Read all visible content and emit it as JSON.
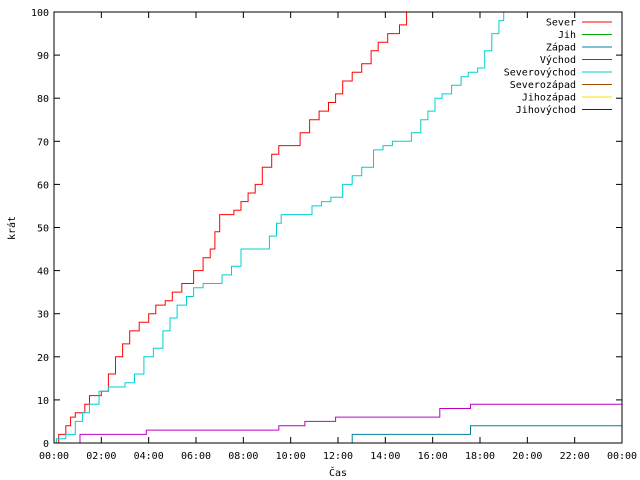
{
  "chart_data": {
    "type": "line",
    "title": "",
    "xlabel": "Čas",
    "ylabel": "krát",
    "xlim": [
      0,
      24
    ],
    "ylim": [
      0,
      100
    ],
    "x_ticks": [
      {
        "value": 0,
        "label": "00:00"
      },
      {
        "value": 2,
        "label": "02:00"
      },
      {
        "value": 4,
        "label": "04:00"
      },
      {
        "value": 6,
        "label": "06:00"
      },
      {
        "value": 8,
        "label": "08:00"
      },
      {
        "value": 10,
        "label": "10:00"
      },
      {
        "value": 12,
        "label": "12:00"
      },
      {
        "value": 14,
        "label": "14:00"
      },
      {
        "value": 16,
        "label": "16:00"
      },
      {
        "value": 18,
        "label": "18:00"
      },
      {
        "value": 20,
        "label": "20:00"
      },
      {
        "value": 22,
        "label": "22:00"
      },
      {
        "value": 24,
        "label": "00:00"
      }
    ],
    "y_ticks": [
      0,
      10,
      20,
      30,
      40,
      50,
      60,
      70,
      80,
      90,
      100
    ],
    "grid": false,
    "legend_position": "top-right",
    "series": [
      {
        "name": "Sever",
        "color": "#ff0000",
        "step": true,
        "points": [
          [
            0,
            0
          ],
          [
            0.2,
            2
          ],
          [
            0.5,
            4
          ],
          [
            0.7,
            6
          ],
          [
            0.9,
            7
          ],
          [
            1.3,
            9
          ],
          [
            1.5,
            11
          ],
          [
            2.0,
            12
          ],
          [
            2.3,
            16
          ],
          [
            2.6,
            20
          ],
          [
            2.9,
            23
          ],
          [
            3.2,
            26
          ],
          [
            3.6,
            28
          ],
          [
            4.0,
            30
          ],
          [
            4.3,
            32
          ],
          [
            4.7,
            33
          ],
          [
            5.0,
            35
          ],
          [
            5.4,
            37
          ],
          [
            5.9,
            40
          ],
          [
            6.3,
            43
          ],
          [
            6.6,
            45
          ],
          [
            6.8,
            49
          ],
          [
            7.0,
            53
          ],
          [
            7.6,
            54
          ],
          [
            7.9,
            56
          ],
          [
            8.2,
            58
          ],
          [
            8.5,
            60
          ],
          [
            8.8,
            64
          ],
          [
            9.2,
            67
          ],
          [
            9.5,
            69
          ],
          [
            10.1,
            69
          ],
          [
            10.4,
            72
          ],
          [
            10.8,
            75
          ],
          [
            11.2,
            77
          ],
          [
            11.6,
            79
          ],
          [
            11.9,
            81
          ],
          [
            12.2,
            84
          ],
          [
            12.6,
            86
          ],
          [
            13.0,
            88
          ],
          [
            13.4,
            91
          ],
          [
            13.7,
            93
          ],
          [
            14.1,
            95
          ],
          [
            14.6,
            97
          ],
          [
            14.9,
            100
          ]
        ]
      },
      {
        "name": "Jih",
        "color": "#00aa00",
        "step": true,
        "points": []
      },
      {
        "name": "Západ",
        "color": "#0080a0",
        "step": true,
        "points": [
          [
            0,
            0
          ],
          [
            12.4,
            0
          ],
          [
            12.6,
            2
          ],
          [
            17.3,
            2
          ],
          [
            17.6,
            4
          ],
          [
            24,
            4
          ]
        ]
      },
      {
        "name": "Východ",
        "color": "#c000c0",
        "step": true,
        "points": [
          [
            0,
            0
          ],
          [
            1.0,
            0
          ],
          [
            1.1,
            2
          ],
          [
            3.8,
            2
          ],
          [
            3.9,
            3
          ],
          [
            9.3,
            3
          ],
          [
            9.5,
            4
          ],
          [
            10.4,
            4
          ],
          [
            10.6,
            5
          ],
          [
            11.7,
            5
          ],
          [
            11.9,
            6
          ],
          [
            16.1,
            6
          ],
          [
            16.3,
            8
          ],
          [
            17.4,
            8
          ],
          [
            17.6,
            9
          ],
          [
            24,
            9
          ]
        ]
      },
      {
        "name": "Severovýchod",
        "color": "#00d0d0",
        "step": true,
        "points": [
          [
            0,
            0
          ],
          [
            0.1,
            1
          ],
          [
            0.5,
            2
          ],
          [
            0.9,
            5
          ],
          [
            1.2,
            7
          ],
          [
            1.5,
            9
          ],
          [
            1.9,
            12
          ],
          [
            2.3,
            13
          ],
          [
            2.7,
            13
          ],
          [
            3.0,
            14
          ],
          [
            3.4,
            16
          ],
          [
            3.8,
            20
          ],
          [
            4.2,
            22
          ],
          [
            4.6,
            26
          ],
          [
            4.9,
            29
          ],
          [
            5.2,
            32
          ],
          [
            5.6,
            34
          ],
          [
            5.9,
            36
          ],
          [
            6.3,
            37
          ],
          [
            6.7,
            37
          ],
          [
            7.1,
            39
          ],
          [
            7.5,
            41
          ],
          [
            7.9,
            45
          ],
          [
            8.3,
            45
          ],
          [
            8.7,
            45
          ],
          [
            9.1,
            48
          ],
          [
            9.4,
            51
          ],
          [
            9.6,
            53
          ],
          [
            10.6,
            53
          ],
          [
            10.9,
            55
          ],
          [
            11.3,
            56
          ],
          [
            11.7,
            57
          ],
          [
            12.2,
            60
          ],
          [
            12.6,
            62
          ],
          [
            13.0,
            64
          ],
          [
            13.5,
            68
          ],
          [
            13.9,
            69
          ],
          [
            14.3,
            70
          ],
          [
            14.8,
            70
          ],
          [
            15.1,
            72
          ],
          [
            15.5,
            75
          ],
          [
            15.8,
            77
          ],
          [
            16.1,
            80
          ],
          [
            16.4,
            81
          ],
          [
            16.8,
            83
          ],
          [
            17.2,
            85
          ],
          [
            17.5,
            86
          ],
          [
            17.9,
            87
          ],
          [
            18.2,
            91
          ],
          [
            18.5,
            95
          ],
          [
            18.8,
            98
          ],
          [
            19.0,
            100
          ]
        ]
      },
      {
        "name": "Severozápad",
        "color": "#a05000",
        "step": true,
        "points": []
      },
      {
        "name": "Jihozápad",
        "color": "#ffdd00",
        "step": true,
        "points": []
      },
      {
        "name": "Jihovýchod",
        "color": "#4000a0",
        "step": true,
        "points": []
      }
    ]
  }
}
